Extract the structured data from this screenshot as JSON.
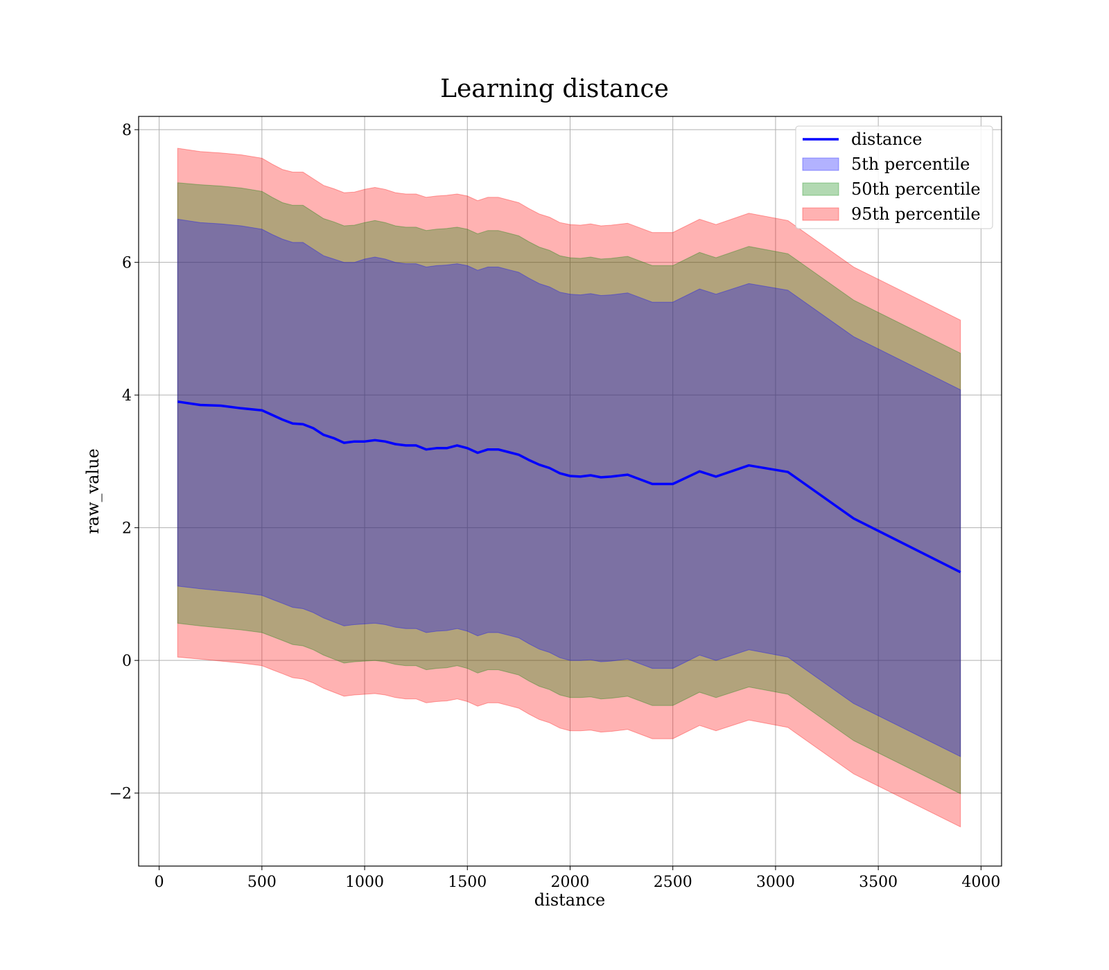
{
  "chart_data": {
    "type": "line",
    "title": "Learning distance",
    "xlabel": "distance",
    "ylabel": "raw_value",
    "xlim": [
      -100,
      4100
    ],
    "ylim": [
      -3.1,
      8.2
    ],
    "xticks": [
      0,
      500,
      1000,
      1500,
      2000,
      2500,
      3000,
      3500,
      4000
    ],
    "xtick_labels": [
      "0",
      "500",
      "1000",
      "1500",
      "2000",
      "2500",
      "3000",
      "3500",
      "4000"
    ],
    "yticks": [
      -2,
      0,
      2,
      4,
      6,
      8
    ],
    "ytick_labels": [
      "−2",
      "0",
      "2",
      "4",
      "6",
      "8"
    ],
    "grid": true,
    "legend_position": "top-right",
    "legend": [
      {
        "label": "distance",
        "kind": "line",
        "color": "#0000ff"
      },
      {
        "label": "5th percentile",
        "kind": "patch",
        "color": "#0000ff"
      },
      {
        "label": "50th percentile",
        "kind": "patch",
        "color": "#008000"
      },
      {
        "label": "95th percentile",
        "kind": "patch",
        "color": "#ff0000"
      }
    ],
    "x": [
      90,
      200,
      300,
      400,
      500,
      550,
      600,
      650,
      700,
      750,
      800,
      850,
      900,
      950,
      1000,
      1050,
      1100,
      1150,
      1200,
      1250,
      1300,
      1350,
      1400,
      1450,
      1500,
      1550,
      1600,
      1650,
      1700,
      1750,
      1800,
      1850,
      1900,
      1950,
      2000,
      2050,
      2100,
      2150,
      2200,
      2280,
      2400,
      2500,
      2630,
      2710,
      2870,
      3060,
      3380,
      3900
    ],
    "series": [
      {
        "name": "distance",
        "type": "line",
        "color": "#0000ff",
        "values": [
          3.9,
          3.85,
          3.84,
          3.8,
          3.77,
          3.7,
          3.63,
          3.57,
          3.56,
          3.5,
          3.4,
          3.35,
          3.28,
          3.3,
          3.3,
          3.32,
          3.3,
          3.26,
          3.24,
          3.24,
          3.18,
          3.2,
          3.2,
          3.24,
          3.2,
          3.13,
          3.18,
          3.18,
          3.14,
          3.1,
          3.02,
          2.95,
          2.9,
          2.82,
          2.78,
          2.77,
          2.79,
          2.76,
          2.77,
          2.8,
          2.66,
          2.66,
          2.85,
          2.77,
          2.94,
          2.84,
          2.14,
          1.33
        ]
      },
      {
        "name": "5th percentile",
        "type": "band",
        "color": "#0000ff",
        "alpha": 0.3,
        "upper": [
          6.65,
          6.6,
          6.58,
          6.55,
          6.5,
          6.42,
          6.35,
          6.3,
          6.3,
          6.2,
          6.1,
          6.05,
          6.0,
          6.0,
          6.05,
          6.08,
          6.05,
          6.0,
          5.98,
          5.98,
          5.93,
          5.95,
          5.96,
          5.98,
          5.95,
          5.88,
          5.93,
          5.93,
          5.89,
          5.85,
          5.76,
          5.68,
          5.63,
          5.55,
          5.52,
          5.51,
          5.53,
          5.5,
          5.51,
          5.54,
          5.4,
          5.4,
          5.6,
          5.52,
          5.68,
          5.58,
          4.88,
          4.08
        ],
        "lower": [
          1.12,
          1.08,
          1.05,
          1.02,
          0.98,
          0.92,
          0.86,
          0.8,
          0.78,
          0.72,
          0.64,
          0.58,
          0.52,
          0.54,
          0.55,
          0.56,
          0.54,
          0.5,
          0.48,
          0.48,
          0.42,
          0.44,
          0.45,
          0.48,
          0.44,
          0.37,
          0.42,
          0.42,
          0.38,
          0.34,
          0.25,
          0.17,
          0.12,
          0.04,
          0.0,
          0.0,
          0.01,
          -0.02,
          -0.01,
          0.02,
          -0.12,
          -0.12,
          0.08,
          0.0,
          0.16,
          0.05,
          -0.65,
          -1.45
        ]
      },
      {
        "name": "50th percentile",
        "type": "band",
        "color": "#008000",
        "alpha": 0.3,
        "upper": [
          7.2,
          7.17,
          7.15,
          7.12,
          7.07,
          6.98,
          6.9,
          6.86,
          6.86,
          6.76,
          6.66,
          6.61,
          6.55,
          6.56,
          6.6,
          6.63,
          6.6,
          6.55,
          6.53,
          6.53,
          6.48,
          6.5,
          6.51,
          6.53,
          6.5,
          6.43,
          6.48,
          6.48,
          6.44,
          6.4,
          6.31,
          6.23,
          6.18,
          6.1,
          6.07,
          6.06,
          6.08,
          6.05,
          6.06,
          6.09,
          5.95,
          5.95,
          6.15,
          6.07,
          6.24,
          6.13,
          5.43,
          4.63
        ],
        "lower": [
          0.56,
          0.52,
          0.49,
          0.46,
          0.42,
          0.36,
          0.3,
          0.24,
          0.22,
          0.16,
          0.08,
          0.02,
          -0.04,
          -0.02,
          -0.01,
          0.0,
          -0.02,
          -0.06,
          -0.08,
          -0.08,
          -0.14,
          -0.12,
          -0.11,
          -0.08,
          -0.12,
          -0.19,
          -0.14,
          -0.14,
          -0.18,
          -0.22,
          -0.31,
          -0.39,
          -0.44,
          -0.52,
          -0.56,
          -0.56,
          -0.55,
          -0.58,
          -0.57,
          -0.54,
          -0.68,
          -0.68,
          -0.48,
          -0.56,
          -0.4,
          -0.51,
          -1.21,
          -2.01
        ]
      },
      {
        "name": "95th percentile",
        "type": "band",
        "color": "#ff0000",
        "alpha": 0.3,
        "upper": [
          7.72,
          7.67,
          7.65,
          7.62,
          7.57,
          7.48,
          7.4,
          7.36,
          7.36,
          7.26,
          7.16,
          7.11,
          7.05,
          7.06,
          7.1,
          7.13,
          7.1,
          7.05,
          7.03,
          7.03,
          6.98,
          7.0,
          7.01,
          7.03,
          7.0,
          6.93,
          6.98,
          6.98,
          6.94,
          6.9,
          6.81,
          6.73,
          6.68,
          6.6,
          6.57,
          6.56,
          6.58,
          6.55,
          6.56,
          6.59,
          6.45,
          6.45,
          6.65,
          6.57,
          6.74,
          6.63,
          5.93,
          5.13
        ],
        "lower": [
          0.05,
          0.02,
          -0.01,
          -0.04,
          -0.08,
          -0.14,
          -0.2,
          -0.26,
          -0.28,
          -0.34,
          -0.42,
          -0.48,
          -0.54,
          -0.52,
          -0.51,
          -0.5,
          -0.52,
          -0.56,
          -0.58,
          -0.58,
          -0.64,
          -0.62,
          -0.61,
          -0.58,
          -0.62,
          -0.69,
          -0.64,
          -0.64,
          -0.68,
          -0.72,
          -0.81,
          -0.89,
          -0.94,
          -1.02,
          -1.06,
          -1.06,
          -1.05,
          -1.08,
          -1.07,
          -1.04,
          -1.18,
          -1.18,
          -0.98,
          -1.06,
          -0.9,
          -1.01,
          -1.71,
          -2.51
        ]
      }
    ]
  }
}
